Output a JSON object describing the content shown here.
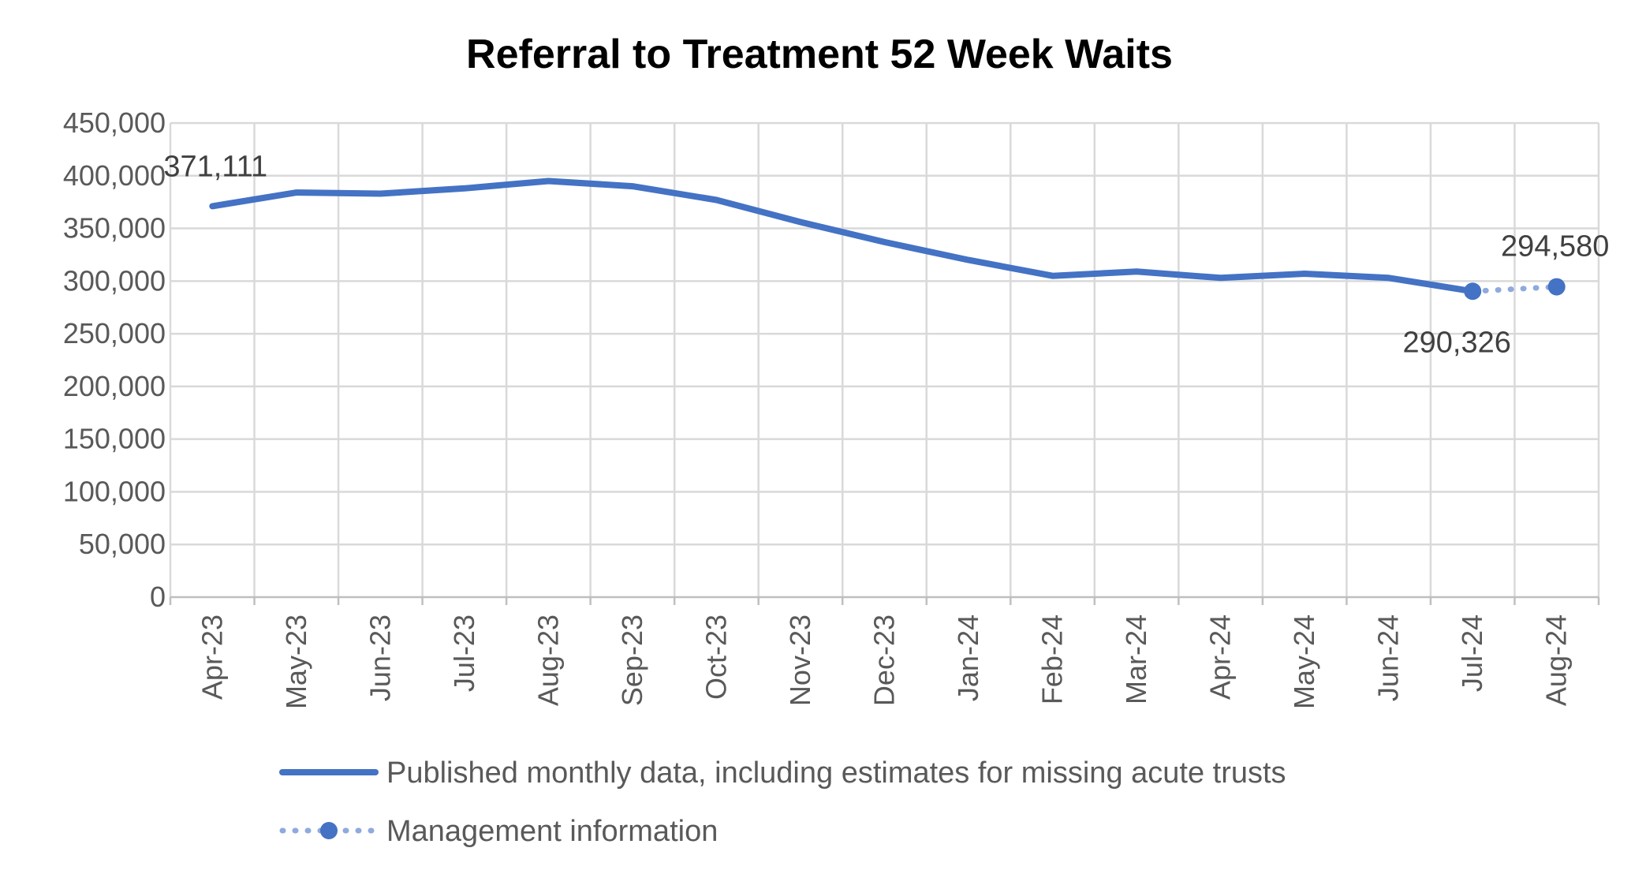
{
  "chart_data": {
    "type": "line",
    "title": "Referral to Treatment 52 Week Waits",
    "xlabel": "",
    "ylabel": "",
    "categories": [
      "Apr-23",
      "May-23",
      "Jun-23",
      "Jul-23",
      "Aug-23",
      "Sep-23",
      "Oct-23",
      "Nov-23",
      "Dec-23",
      "Jan-24",
      "Feb-24",
      "Mar-24",
      "Apr-24",
      "May-24",
      "Jun-24",
      "Jul-24",
      "Aug-24"
    ],
    "ylim": [
      0,
      450000
    ],
    "yticks": [
      0,
      50000,
      100000,
      150000,
      200000,
      250000,
      300000,
      350000,
      400000,
      450000
    ],
    "ytick_labels": [
      "0",
      "50,000",
      "100,000",
      "150,000",
      "200,000",
      "250,000",
      "300,000",
      "350,000",
      "400,000",
      "450,000"
    ],
    "grid": true,
    "legend_position": "bottom",
    "series": [
      {
        "name": "Published monthly data, including estimates for missing acute trusts",
        "style": "solid",
        "color": "#4472C4",
        "values": [
          371111,
          384000,
          383000,
          388000,
          395000,
          390000,
          377000,
          356000,
          337000,
          320000,
          305000,
          309000,
          303000,
          307000,
          303000,
          290326,
          null
        ]
      },
      {
        "name": "Management information",
        "style": "dotted-markers",
        "color": "#4472C4",
        "values": [
          null,
          null,
          null,
          null,
          null,
          null,
          null,
          null,
          null,
          null,
          null,
          null,
          null,
          null,
          null,
          290326,
          294580
        ]
      }
    ],
    "annotations": [
      {
        "category": "Apr-23",
        "value": 371111,
        "text": "371,111"
      },
      {
        "category": "Jul-24",
        "value": 290326,
        "text": "290,326"
      },
      {
        "category": "Aug-24",
        "value": 294580,
        "text": "294,580"
      }
    ]
  }
}
